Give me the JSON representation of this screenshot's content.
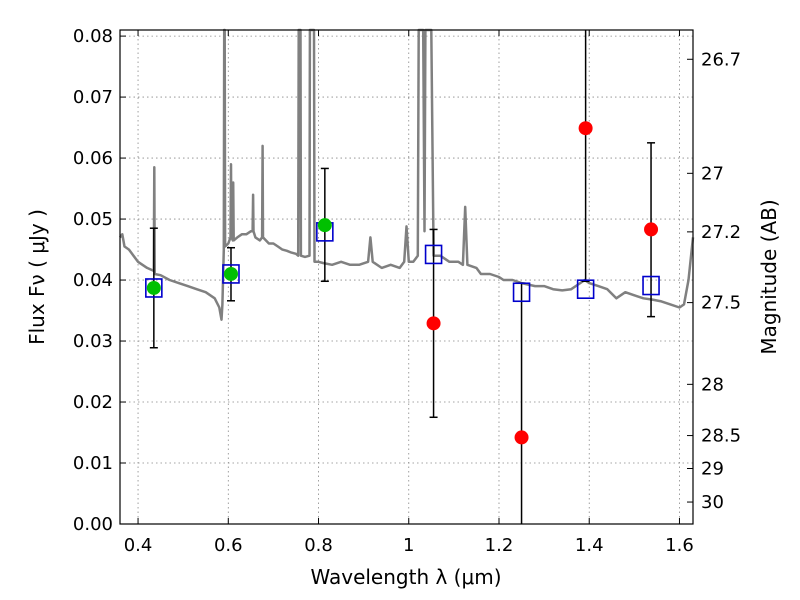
{
  "chart_data": {
    "type": "scatter",
    "xlabel": "Wavelength  λ (μm)",
    "ylabel": "Flux  Fν  ( μJy )",
    "y2label": "Magnitude (AB)",
    "xlim": [
      0.36,
      1.63
    ],
    "ylim": [
      0.0,
      0.081
    ],
    "grid": true,
    "x_ticks": [
      0.4,
      0.6,
      0.8,
      1.0,
      1.2,
      1.4,
      1.6
    ],
    "x_tick_labels": [
      "0.4",
      "0.6",
      "0.8",
      "1",
      "1.2",
      "1.4",
      "1.6"
    ],
    "y_ticks": [
      0.0,
      0.01,
      0.02,
      0.03,
      0.04,
      0.05,
      0.06,
      0.07,
      0.08
    ],
    "y_tick_labels": [
      "0.00",
      "0.01",
      "0.02",
      "0.03",
      "0.04",
      "0.05",
      "0.06",
      "0.07",
      "0.08"
    ],
    "y2_ticks": [
      {
        "label": "26.7",
        "flux": 0.0762
      },
      {
        "label": "27",
        "flux": 0.0575
      },
      {
        "label": "27.2",
        "flux": 0.0479
      },
      {
        "label": "27.5",
        "flux": 0.0363
      },
      {
        "label": "28",
        "flux": 0.0229
      },
      {
        "label": "28.5",
        "flux": 0.0145
      },
      {
        "label": "29",
        "flux": 0.0091
      },
      {
        "label": "30",
        "flux": 0.0036
      }
    ],
    "colors": {
      "model": "#808080",
      "detected": "#00c000",
      "undetected": "#ff0000",
      "model_photometry": "#0000cc",
      "errorbar": "#000000",
      "grid": "#888888"
    },
    "series": [
      {
        "points": [
          {
            "x": 0.435,
            "y": 0.0387,
            "yerr": [
              0.0289,
              0.0485
            ]
          },
          {
            "x": 0.606,
            "y": 0.041,
            "yerr": [
              0.0366,
              0.0453
            ]
          },
          {
            "x": 0.814,
            "y": 0.049,
            "yerr": [
              0.0398,
              0.0583
            ]
          }
        ]
      },
      {
        "points": [
          {
            "x": 1.055,
            "y": 0.0329,
            "yerr": [
              0.0175,
              0.0483
            ]
          },
          {
            "x": 1.25,
            "y": 0.0142,
            "yerr": [
              0.0,
              0.0395
            ]
          },
          {
            "x": 1.392,
            "y": 0.0649,
            "yerr": [
              0.0398,
              0.081
            ]
          },
          {
            "x": 1.537,
            "y": 0.0483,
            "yerr": [
              0.034,
              0.0625
            ]
          }
        ]
      },
      {
        "points": [
          {
            "x": 0.435,
            "y": 0.0387
          },
          {
            "x": 0.606,
            "y": 0.041
          },
          {
            "x": 0.814,
            "y": 0.0479
          },
          {
            "x": 1.055,
            "y": 0.0442
          },
          {
            "x": 1.25,
            "y": 0.038
          },
          {
            "x": 1.392,
            "y": 0.0385
          },
          {
            "x": 1.537,
            "y": 0.0391
          }
        ]
      },
      {
        "points": [
          [
            0.36,
            0.047
          ],
          [
            0.365,
            0.0475
          ],
          [
            0.37,
            0.0455
          ],
          [
            0.38,
            0.045
          ],
          [
            0.39,
            0.044
          ],
          [
            0.4,
            0.043
          ],
          [
            0.42,
            0.042
          ],
          [
            0.435,
            0.0415
          ],
          [
            0.436,
            0.0585
          ],
          [
            0.437,
            0.041
          ],
          [
            0.45,
            0.0408
          ],
          [
            0.47,
            0.04
          ],
          [
            0.49,
            0.0395
          ],
          [
            0.51,
            0.039
          ],
          [
            0.53,
            0.0385
          ],
          [
            0.55,
            0.038
          ],
          [
            0.57,
            0.037
          ],
          [
            0.58,
            0.0355
          ],
          [
            0.585,
            0.0335
          ],
          [
            0.587,
            0.036
          ],
          [
            0.59,
            0.045
          ],
          [
            0.591,
            0.081
          ],
          [
            0.592,
            0.081
          ],
          [
            0.593,
            0.0455
          ],
          [
            0.6,
            0.046
          ],
          [
            0.605,
            0.047
          ],
          [
            0.606,
            0.059
          ],
          [
            0.607,
            0.047
          ],
          [
            0.61,
            0.0465
          ],
          [
            0.611,
            0.056
          ],
          [
            0.612,
            0.0465
          ],
          [
            0.62,
            0.047
          ],
          [
            0.63,
            0.0475
          ],
          [
            0.64,
            0.0475
          ],
          [
            0.65,
            0.048
          ],
          [
            0.654,
            0.048
          ],
          [
            0.655,
            0.054
          ],
          [
            0.656,
            0.048
          ],
          [
            0.66,
            0.047
          ],
          [
            0.67,
            0.0465
          ],
          [
            0.675,
            0.047
          ],
          [
            0.676,
            0.062
          ],
          [
            0.677,
            0.047
          ],
          [
            0.69,
            0.046
          ],
          [
            0.7,
            0.046
          ],
          [
            0.71,
            0.0455
          ],
          [
            0.72,
            0.045
          ],
          [
            0.73,
            0.0448
          ],
          [
            0.74,
            0.0445
          ],
          [
            0.75,
            0.0443
          ],
          [
            0.755,
            0.044
          ],
          [
            0.756,
            0.081
          ],
          [
            0.76,
            0.081
          ],
          [
            0.761,
            0.044
          ],
          [
            0.77,
            0.0438
          ],
          [
            0.78,
            0.044
          ],
          [
            0.781,
            0.081
          ],
          [
            0.79,
            0.081
          ],
          [
            0.791,
            0.043
          ],
          [
            0.8,
            0.043
          ],
          [
            0.81,
            0.0428
          ],
          [
            0.83,
            0.0425
          ],
          [
            0.85,
            0.043
          ],
          [
            0.87,
            0.0425
          ],
          [
            0.89,
            0.0425
          ],
          [
            0.91,
            0.043
          ],
          [
            0.915,
            0.047
          ],
          [
            0.92,
            0.043
          ],
          [
            0.94,
            0.042
          ],
          [
            0.96,
            0.0425
          ],
          [
            0.98,
            0.042
          ],
          [
            0.99,
            0.043
          ],
          [
            0.995,
            0.0488
          ],
          [
            1.0,
            0.043
          ],
          [
            1.01,
            0.043
          ],
          [
            1.02,
            0.044
          ],
          [
            1.022,
            0.081
          ],
          [
            1.032,
            0.081
          ],
          [
            1.035,
            0.048
          ],
          [
            1.037,
            0.081
          ],
          [
            1.05,
            0.081
          ],
          [
            1.055,
            0.044
          ],
          [
            1.07,
            0.044
          ],
          [
            1.09,
            0.043
          ],
          [
            1.11,
            0.043
          ],
          [
            1.12,
            0.0425
          ],
          [
            1.125,
            0.052
          ],
          [
            1.13,
            0.0425
          ],
          [
            1.15,
            0.042
          ],
          [
            1.16,
            0.041
          ],
          [
            1.18,
            0.041
          ],
          [
            1.2,
            0.0405
          ],
          [
            1.21,
            0.04
          ],
          [
            1.23,
            0.04
          ],
          [
            1.25,
            0.0395
          ],
          [
            1.28,
            0.039
          ],
          [
            1.3,
            0.039
          ],
          [
            1.32,
            0.0385
          ],
          [
            1.34,
            0.0383
          ],
          [
            1.36,
            0.0385
          ],
          [
            1.38,
            0.0395
          ],
          [
            1.39,
            0.04
          ],
          [
            1.4,
            0.0395
          ],
          [
            1.42,
            0.039
          ],
          [
            1.44,
            0.0385
          ],
          [
            1.46,
            0.037
          ],
          [
            1.48,
            0.038
          ],
          [
            1.5,
            0.0375
          ],
          [
            1.52,
            0.037
          ],
          [
            1.54,
            0.0368
          ],
          [
            1.56,
            0.0365
          ],
          [
            1.58,
            0.036
          ],
          [
            1.6,
            0.0355
          ],
          [
            1.61,
            0.036
          ],
          [
            1.62,
            0.04
          ],
          [
            1.63,
            0.047
          ]
        ]
      }
    ]
  }
}
